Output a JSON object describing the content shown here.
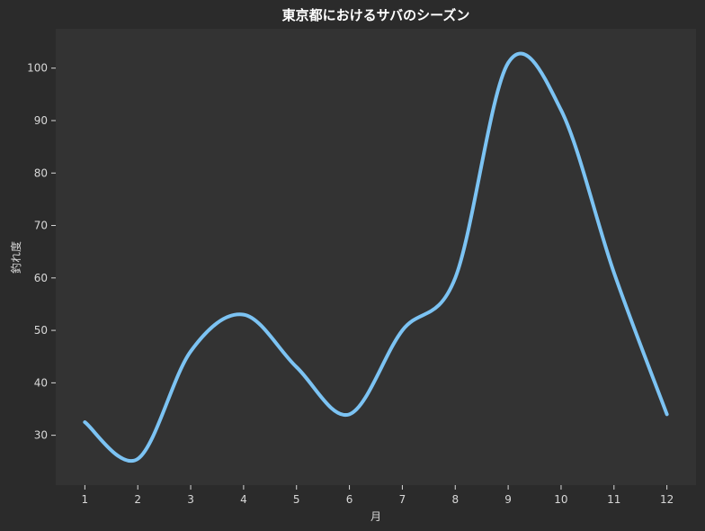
{
  "chart_data": {
    "type": "line",
    "title": "東京都におけるサバのシーズン",
    "xlabel": "月",
    "ylabel": "釣れ度",
    "x": [
      1,
      2,
      3,
      4,
      5,
      6,
      7,
      8,
      9,
      10,
      11,
      12
    ],
    "series": [
      {
        "values": [
          32.5,
          25.5,
          46,
          53,
          43,
          34,
          50,
          60,
          101,
          92,
          61,
          34
        ]
      }
    ],
    "xlim": [
      0.45,
      12.55
    ],
    "ylim": [
      20.5,
      107.5
    ],
    "xticks": [
      "1",
      "2",
      "3",
      "4",
      "5",
      "6",
      "7",
      "8",
      "9",
      "10",
      "11",
      "12"
    ],
    "yticks": [
      "30",
      "40",
      "50",
      "60",
      "70",
      "80",
      "90",
      "100"
    ],
    "grid": false,
    "colors": {
      "line": "#7cc3f3",
      "plot_bg": "#333333",
      "page_bg": "#2b2b2b"
    }
  }
}
